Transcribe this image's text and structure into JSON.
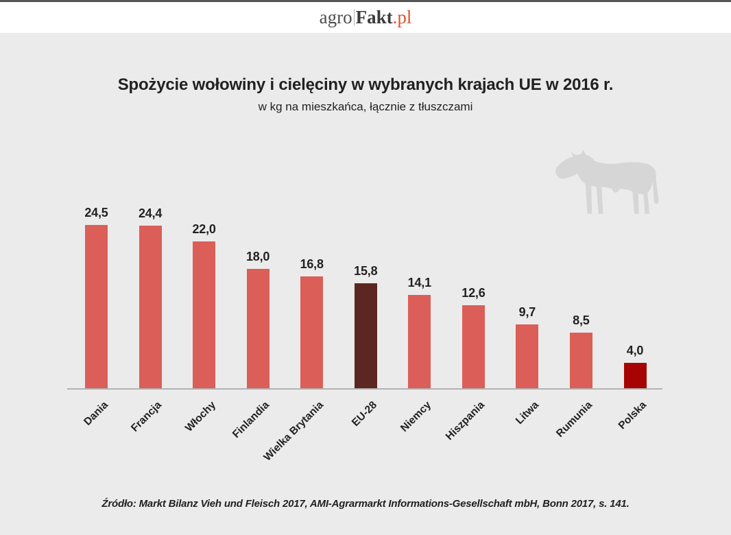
{
  "header": {
    "logo": {
      "part1": "agro",
      "part2": "Fakt",
      "part3": ".pl"
    }
  },
  "title": "Spożycie wołowiny i cielęciny w wybranych krajach UE w 2016 r.",
  "subtitle": "w kg na mieszkańca, łącznie z tłuszczami",
  "source": "Źródło: Markt Bilanz Vieh und Fleisch 2017, AMI-Agrarmarkt Informations-Gesellschaft mbH, Bonn 2017, s. 141.",
  "colors": {
    "background": "#ecebeb",
    "header_background": "#ffffff",
    "top_strip": "#565656",
    "logo_accent": "#e0512e",
    "bar_default": "#db5e58",
    "bar_eu28": "#5c2623",
    "bar_polska": "#a60404",
    "axis_line": "#b2b2b2",
    "text": "#212121",
    "cow": "#d6d6d6"
  },
  "chart_data": {
    "type": "bar",
    "orientation": "vertical",
    "title": "Spożycie wołowiny i cielęciny w wybranych krajach UE w 2016 r.",
    "subtitle": "w kg na mieszkańca, łącznie z tłuszczami",
    "categories": [
      "Dania",
      "Francja",
      "Włochy",
      "Finlandia",
      "Wielka Brytania",
      "EU-28",
      "Niemcy",
      "Hiszpania",
      "Litwa",
      "Rumunia",
      "Polska"
    ],
    "values": [
      24.5,
      24.4,
      22.0,
      18.0,
      16.8,
      15.8,
      14.1,
      12.6,
      9.7,
      8.5,
      4.0
    ],
    "value_labels": [
      "24,5",
      "24,4",
      "22,0",
      "18,0",
      "16,8",
      "15,8",
      "14,1",
      "12,6",
      "9,7",
      "8,5",
      "4,0"
    ],
    "bar_colors": [
      "#db5e58",
      "#db5e58",
      "#db5e58",
      "#db5e58",
      "#db5e58",
      "#5c2623",
      "#db5e58",
      "#db5e58",
      "#db5e58",
      "#db5e58",
      "#a60404"
    ],
    "highlighted_categories": [
      "EU-28",
      "Polska"
    ],
    "ylim": [
      0,
      26
    ],
    "y_axis_visible": false,
    "grid": false,
    "value_labels_position": "above bars",
    "category_label_rotation_deg": -45
  }
}
